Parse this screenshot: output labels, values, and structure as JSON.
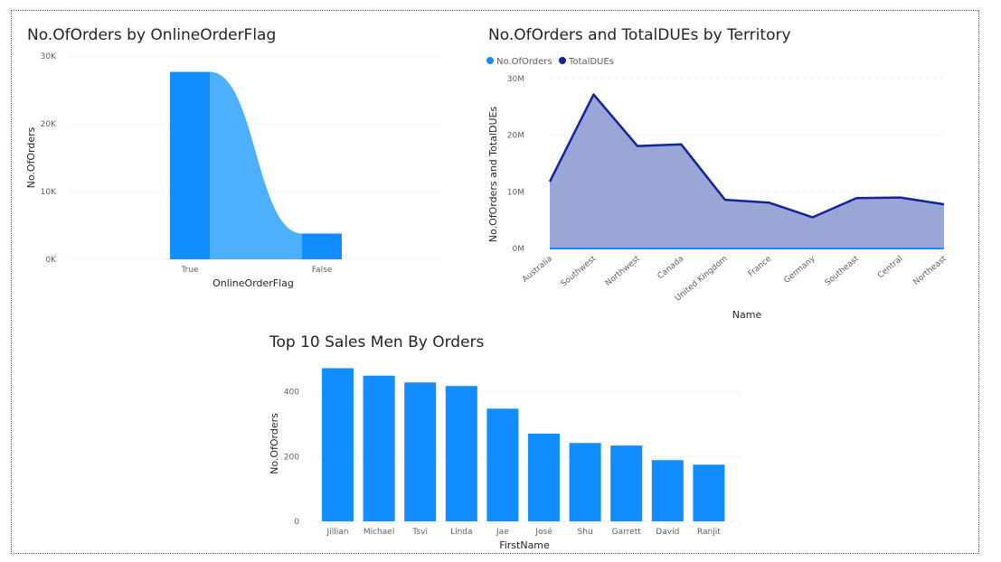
{
  "colors": {
    "orders": "#118DFF",
    "orders_light": "#4CB0FF",
    "totaldues": "#12239E",
    "totaldues_fill": "#9AA6D6",
    "grid": "#d9d9d9",
    "frame": "#555555"
  },
  "chart_data": [
    {
      "id": "orders-by-flag",
      "type": "bar",
      "title": "No.OfOrders by OnlineOrderFlag",
      "xlabel": "OnlineOrderFlag",
      "ylabel": "No.OfOrders",
      "categories": [
        "True",
        "False"
      ],
      "values": [
        27659,
        3806
      ],
      "ylim": [
        0,
        30000
      ],
      "yticks": [
        {
          "value": 0,
          "label": "0K"
        },
        {
          "value": 10000,
          "label": "10K"
        },
        {
          "value": 20000,
          "label": "20K"
        },
        {
          "value": 30000,
          "label": "30K"
        }
      ],
      "grid": true
    },
    {
      "id": "territory",
      "type": "area",
      "title": "No.OfOrders and TotalDUEs by Territory",
      "xlabel": "Name",
      "ylabel": "No.OfOrders and TotalDUEs",
      "legend": "top-left",
      "categories": [
        "Australia",
        "Southwest",
        "Northwest",
        "Canada",
        "United Kingdom",
        "France",
        "Germany",
        "Southeast",
        "Central",
        "Northeast"
      ],
      "series": [
        {
          "name": "No.OfOrders",
          "values": [
            6843,
            6224,
            4594,
            4067,
            3219,
            2672,
            2623,
            486,
            385,
            352
          ]
        },
        {
          "name": "TotalDUEs",
          "values": [
            11800000,
            27200000,
            18100000,
            18400000,
            8600000,
            8100000,
            5500000,
            8900000,
            9000000,
            7800000
          ]
        }
      ],
      "ylim": [
        0,
        30000000
      ],
      "yticks": [
        {
          "value": 0,
          "label": "0M"
        },
        {
          "value": 10000000,
          "label": "10M"
        },
        {
          "value": 20000000,
          "label": "20M"
        },
        {
          "value": 30000000,
          "label": "30M"
        }
      ],
      "grid": true
    },
    {
      "id": "top-salesmen",
      "type": "bar",
      "title": "Top 10 Sales Men By Orders",
      "xlabel": "FirstName",
      "ylabel": "No.OfOrders",
      "categories": [
        "Jillian",
        "Michael",
        "Tsvi",
        "Linda",
        "Jae",
        "José",
        "Shu",
        "Garrett",
        "David",
        "Ranjit"
      ],
      "values": [
        473,
        450,
        429,
        418,
        348,
        271,
        242,
        234,
        189,
        175
      ],
      "ylim": [
        0,
        480
      ],
      "yticks": [
        {
          "value": 0,
          "label": "0"
        },
        {
          "value": 200,
          "label": "200"
        },
        {
          "value": 400,
          "label": "400"
        }
      ],
      "grid": true
    }
  ]
}
